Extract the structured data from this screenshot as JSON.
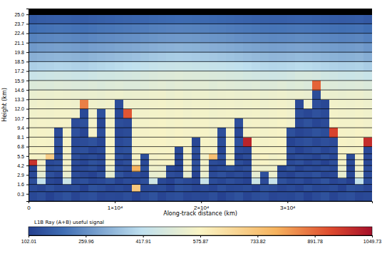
{
  "chart_data": {
    "type": "heatmap",
    "xlabel": "Along-track distance (km)",
    "ylabel": "Height (km)",
    "xlim": [
      0,
      39800
    ],
    "ylim": [
      -0.7,
      25.8
    ],
    "xticks": [
      0,
      {
        "value": 10000,
        "label": "1×10⁴"
      },
      {
        "value": 20000,
        "label": "2×10⁴"
      },
      {
        "value": 30000,
        "label": "3×10⁴"
      }
    ],
    "yticks": [
      0.3,
      1.6,
      2.9,
      4.2,
      5.5,
      6.8,
      8.1,
      9.4,
      10.7,
      {
        "value": 12,
        "label": "12.0"
      },
      13.3,
      14.6,
      15.9,
      17.2,
      18.5,
      19.8,
      21.1,
      22.4,
      23.7,
      {
        "value": 25,
        "label": "25.0"
      }
    ],
    "x_bins": [
      0,
      995,
      1990,
      2985,
      3980,
      4975,
      5970,
      6965,
      7960,
      8955,
      9950,
      10945,
      11940,
      12935,
      13930,
      14925,
      15920,
      16915,
      17910,
      18905,
      19900,
      20895,
      21890,
      22885,
      23880,
      24875,
      25870,
      26865,
      27860,
      28855,
      29850,
      30845,
      31840,
      32835,
      33830,
      34825,
      35820,
      36815,
      37810,
      38805,
      39800
    ],
    "y_bins": [
      -0.7,
      0.6,
      1.6,
      2.5,
      3.4,
      4.2,
      5.0,
      5.8,
      6.8,
      8.1,
      9.4,
      10.7,
      12.0,
      13.3,
      14.6,
      15.9,
      17.2,
      18.5,
      19.8,
      21.1,
      22.4,
      23.7,
      25.0,
      25.8
    ],
    "cells": [
      [
        118,
        132,
        107,
        125,
        140,
        112,
        129,
        136,
        115,
        121,
        118,
        132,
        107,
        125,
        140,
        112,
        129,
        136,
        115,
        121,
        118,
        132,
        107,
        125,
        140,
        112,
        129,
        136,
        115,
        121,
        118,
        132,
        107,
        125,
        140,
        112,
        129,
        136,
        115,
        121
      ],
      [
        125,
        112,
        136,
        118,
        121,
        129,
        107,
        140,
        132,
        115,
        125,
        112,
        720,
        118,
        121,
        129,
        107,
        140,
        132,
        115,
        125,
        112,
        136,
        118,
        121,
        129,
        107,
        140,
        132,
        115,
        125,
        112,
        136,
        118,
        121,
        129,
        107,
        140,
        132,
        115
      ],
      [
        131,
        426,
        119,
        108,
        441,
        127,
        135,
        114,
        122,
        139,
        110,
        128,
        117,
        133,
        452,
        120,
        106,
        138,
        124,
        113,
        437,
        129,
        116,
        134,
        121,
        109,
        448,
        126,
        433,
        137,
        118,
        130,
        111,
        123,
        141,
        115,
        127,
        104,
        429,
        132
      ],
      [
        122,
        518,
        136,
        115,
        531,
        128,
        119,
        107,
        133,
        524,
        141,
        117,
        126,
        112,
        527,
        536,
        130,
        121,
        529,
        109,
        533,
        124,
        138,
        116,
        127,
        113,
        521,
        135,
        538,
        120,
        108,
        131,
        125,
        139,
        114,
        122,
        530,
        118,
        526,
        127
      ],
      [
        113,
        547,
        129,
        138,
        552,
        117,
        124,
        135,
        111,
        541,
        128,
        119,
        780,
        136,
        549,
        544,
        122,
        107,
        553,
        131,
        546,
        115,
        127,
        139,
        120,
        133,
        551,
        542,
        548,
        116,
        137,
        110,
        128,
        121,
        134,
        125,
        540,
        113,
        555,
        130
      ],
      [
        980,
        562,
        120,
        131,
        558,
        126,
        114,
        139,
        128,
        566,
        117,
        133,
        561,
        122,
        559,
        564,
        568,
        110,
        563,
        136,
        557,
        127,
        118,
        565,
        132,
        112,
        560,
        569,
        556,
        567,
        123,
        138,
        115,
        129,
        107,
        134,
        561,
        126,
        563,
        119
      ],
      [
        568,
        565,
        700,
        127,
        561,
        135,
        118,
        129,
        112,
        570,
        138,
        121,
        566,
        133,
        562,
        567,
        571,
        116,
        564,
        125,
        559,
        740,
        137,
        569,
        110,
        130,
        563,
        572,
        558,
        566,
        119,
        134,
        127,
        113,
        140,
        122,
        565,
        128,
        561,
        124
      ],
      [
        564,
        570,
        567,
        118,
        566,
        129,
        136,
        113,
        125,
        572,
        131,
        140,
        563,
        568,
        571,
        565,
        569,
        122,
        567,
        137,
        562,
        570,
        114,
        566,
        128,
        119,
        573,
        564,
        568,
        570,
        133,
        109,
        126,
        138,
        117,
        130,
        569,
        561,
        566,
        121
      ],
      [
        560,
        566,
        563,
        132,
        569,
        120,
        127,
        139,
        114,
        568,
        124,
        135,
        561,
        565,
        567,
        570,
        562,
        571,
        564,
        116,
        566,
        563,
        129,
        568,
        138,
        1010,
        569,
        560,
        565,
        572,
        111,
        128,
        137,
        119,
        133,
        126,
        567,
        563,
        570,
        990
      ],
      [
        557,
        563,
        560,
        125,
        566,
        138,
        115,
        561,
        130,
        564,
        119,
        127,
        559,
        562,
        565,
        568,
        560,
        567,
        561,
        563,
        566,
        558,
        134,
        564,
        121,
        562,
        566,
        557,
        563,
        569,
        136,
        112,
        124,
        140,
        129,
        950,
        563,
        560,
        567,
        558
      ],
      [
        553,
        559,
        556,
        562,
        561,
        128,
        137,
        558,
        116,
        560,
        131,
        123,
        555,
        558,
        562,
        564,
        557,
        563,
        556,
        560,
        561,
        554,
        559,
        560,
        133,
        557,
        562,
        553,
        558,
        565,
        555,
        120,
        139,
        114,
        126,
        564,
        558,
        556,
        561,
        553
      ],
      [
        549,
        555,
        552,
        557,
        556,
        551,
        122,
        553,
        135,
        555,
        118,
        920,
        550,
        554,
        558,
        560,
        553,
        559,
        551,
        556,
        557,
        549,
        554,
        556,
        552,
        553,
        557,
        548,
        553,
        560,
        550,
        131,
        117,
        138,
        125,
        559,
        553,
        551,
        556,
        548
      ],
      [
        544,
        550,
        547,
        552,
        551,
        546,
        860,
        548,
        543,
        550,
        129,
        545,
        546,
        549,
        553,
        556,
        548,
        554,
        546,
        551,
        552,
        545,
        549,
        551,
        547,
        548,
        552,
        543,
        548,
        555,
        545,
        124,
        549,
        133,
        119,
        554,
        548,
        546,
        551,
        543
      ],
      [
        532,
        538,
        535,
        540,
        539,
        534,
        531,
        536,
        530,
        537,
        541,
        533,
        534,
        537,
        542,
        545,
        536,
        543,
        535,
        540,
        541,
        533,
        538,
        540,
        536,
        537,
        541,
        532,
        537,
        544,
        534,
        539,
        531,
        127,
        542,
        536,
        530,
        535,
        539,
        528
      ],
      [
        492,
        498,
        495,
        501,
        499,
        494,
        490,
        497,
        489,
        496,
        502,
        493,
        495,
        499,
        507,
        512,
        505,
        514,
        508,
        511,
        513,
        503,
        509,
        506,
        500,
        497,
        502,
        493,
        498,
        504,
        495,
        500,
        491,
        900,
        503,
        497,
        490,
        495,
        499,
        488
      ],
      [
        441,
        447,
        452,
        458,
        455,
        449,
        446,
        453,
        460,
        462,
        468,
        471,
        476,
        483,
        489,
        494,
        497,
        501,
        498,
        495,
        492,
        488,
        486,
        481,
        477,
        470,
        464,
        459,
        455,
        458,
        466,
        478,
        481,
        474,
        462,
        455,
        448,
        446,
        451,
        440
      ],
      [
        382,
        388,
        391,
        396,
        394,
        389,
        385,
        392,
        398,
        403,
        409,
        414,
        419,
        426,
        433,
        438,
        442,
        446,
        443,
        440,
        437,
        434,
        430,
        425,
        419,
        413,
        406,
        400,
        396,
        398,
        402,
        408,
        405,
        399,
        393,
        388,
        384,
        386,
        390,
        379
      ],
      [
        322,
        328,
        331,
        335,
        333,
        329,
        325,
        332,
        337,
        341,
        346,
        350,
        355,
        361,
        367,
        372,
        376,
        379,
        377,
        374,
        371,
        368,
        364,
        359,
        354,
        348,
        343,
        338,
        334,
        336,
        339,
        344,
        341,
        337,
        331,
        327,
        323,
        325,
        329,
        318
      ],
      [
        281,
        287,
        290,
        293,
        291,
        288,
        284,
        290,
        294,
        298,
        302,
        305,
        309,
        314,
        319,
        323,
        326,
        329,
        327,
        325,
        322,
        319,
        316,
        312,
        308,
        303,
        299,
        295,
        292,
        294,
        297,
        300,
        298,
        294,
        289,
        286,
        282,
        284,
        288,
        277
      ],
      [
        238,
        244,
        247,
        250,
        248,
        245,
        241,
        247,
        251,
        254,
        258,
        261,
        264,
        268,
        272,
        276,
        279,
        281,
        280,
        278,
        275,
        272,
        270,
        266,
        262,
        258,
        254,
        251,
        248,
        250,
        252,
        255,
        253,
        250,
        246,
        243,
        239,
        241,
        245,
        235
      ],
      [
        201,
        206,
        209,
        212,
        210,
        207,
        204,
        209,
        213,
        216,
        219,
        222,
        225,
        228,
        232,
        235,
        237,
        239,
        238,
        236,
        234,
        231,
        229,
        226,
        222,
        219,
        215,
        212,
        210,
        211,
        213,
        216,
        214,
        211,
        208,
        205,
        202,
        204,
        207,
        198
      ],
      [
        158,
        163,
        166,
        168,
        167,
        164,
        161,
        166,
        169,
        172,
        175,
        177,
        180,
        183,
        186,
        189,
        191,
        193,
        192,
        190,
        188,
        186,
        184,
        181,
        178,
        175,
        172,
        169,
        167,
        168,
        170,
        172,
        171,
        168,
        165,
        162,
        159,
        161,
        164,
        155
      ],
      [
        null,
        null,
        null,
        null,
        null,
        null,
        null,
        null,
        null,
        null,
        null,
        null,
        null,
        null,
        null,
        null,
        null,
        null,
        null,
        null,
        null,
        null,
        null,
        null,
        null,
        null,
        null,
        null,
        null,
        null,
        null,
        null,
        null,
        null,
        null,
        null,
        null,
        null,
        null,
        null
      ]
    ],
    "colorbar": {
      "label": "L1B Ray (A+B) useful signal",
      "range": [
        102.01,
        1049.73
      ],
      "ticks": [
        102.01,
        259.96,
        417.91,
        575.87,
        733.82,
        891.78,
        1049.73
      ]
    }
  }
}
